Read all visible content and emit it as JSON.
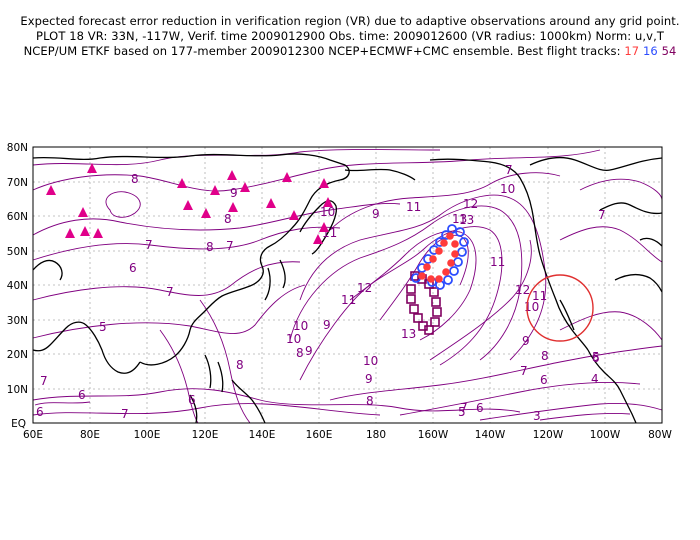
{
  "title": {
    "line1": "Expected forecast error reduction in verification region (VR) due to adaptive observations around any grid point.",
    "line2": "PLOT 18 VR: 33N, -117W, Verif. time 2009012900 Obs. time: 2009012600 (VR radius: 1000km) Norm: u,v,T",
    "line3_prefix": "NCEP/UM ETKF based on 177-member 2009012300 NCEP+ECMWF+CMC ensemble. Best flight tracks:",
    "tracks": [
      {
        "label": "17",
        "color": "#ff3b3b"
      },
      {
        "label": "16",
        "color": "#2b4cff"
      },
      {
        "label": "54",
        "color": "#800060"
      }
    ]
  },
  "map": {
    "lon_labels": [
      "60E",
      "80E",
      "100E",
      "120E",
      "140E",
      "160E",
      "180",
      "160W",
      "140W",
      "120W",
      "100W",
      "80W"
    ],
    "lat_labels": [
      "EQ",
      "10N",
      "20N",
      "30N",
      "40N",
      "50N",
      "60N",
      "70N",
      "80N"
    ],
    "contour_labels": [
      "8",
      "9",
      "8",
      "7",
      "6",
      "7",
      "8",
      "7",
      "5",
      "6",
      "7",
      "6",
      "8",
      "9",
      "10",
      "11",
      "12",
      "13",
      "10",
      "11",
      "12",
      "10",
      "11",
      "13",
      "9",
      "10",
      "11",
      "9",
      "8",
      "7",
      "6",
      "5",
      "6",
      "7",
      "8",
      "9",
      "10",
      "11",
      "12",
      "13",
      "9",
      "10",
      "8",
      "7",
      "6",
      "5",
      "4",
      "3",
      "7",
      "7",
      "6"
    ],
    "verification_region": {
      "lat": 33,
      "lon": -117,
      "color": "#e03030"
    },
    "colors": {
      "contour": "#800080",
      "coast": "#000000",
      "grid": "#b0b0b0",
      "triangles": "#e0008a"
    }
  }
}
